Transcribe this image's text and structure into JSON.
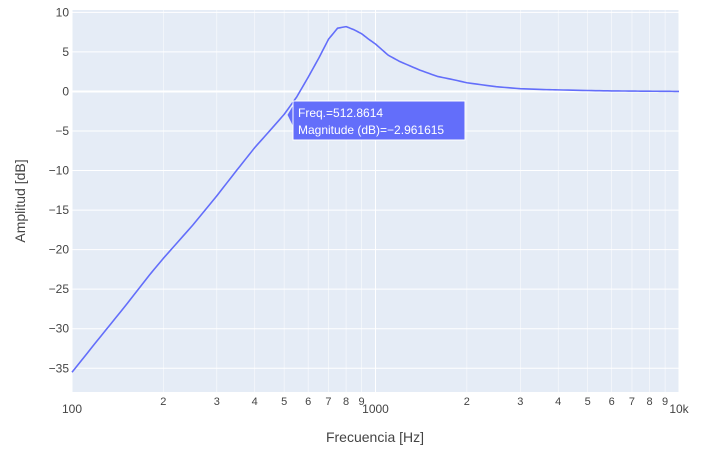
{
  "chart_data": {
    "type": "line",
    "title": "",
    "xlabel": "Frecuencia [Hz]",
    "ylabel": "Amplitud [dB]",
    "x_scale": "log",
    "xlim": [
      100,
      10000
    ],
    "ylim": [
      -38,
      10.3
    ],
    "grid": true,
    "background": "#e5ecf6",
    "x_ticks_major": [
      {
        "value": 100,
        "label": "100"
      },
      {
        "value": 1000,
        "label": "1000"
      },
      {
        "value": 10000,
        "label": "10k"
      }
    ],
    "x_ticks_minor": [
      {
        "value": 200,
        "label": "2"
      },
      {
        "value": 300,
        "label": "3"
      },
      {
        "value": 400,
        "label": "4"
      },
      {
        "value": 500,
        "label": "5"
      },
      {
        "value": 600,
        "label": "6"
      },
      {
        "value": 700,
        "label": "7"
      },
      {
        "value": 800,
        "label": "8"
      },
      {
        "value": 900,
        "label": "9"
      },
      {
        "value": 2000,
        "label": "2"
      },
      {
        "value": 3000,
        "label": "3"
      },
      {
        "value": 4000,
        "label": "4"
      },
      {
        "value": 5000,
        "label": "5"
      },
      {
        "value": 6000,
        "label": "6"
      },
      {
        "value": 7000,
        "label": "7"
      },
      {
        "value": 8000,
        "label": "8"
      },
      {
        "value": 9000,
        "label": "9"
      }
    ],
    "y_ticks": [
      {
        "value": 10,
        "label": "10"
      },
      {
        "value": 5,
        "label": "5"
      },
      {
        "value": 0,
        "label": "0"
      },
      {
        "value": -5,
        "label": "−5"
      },
      {
        "value": -10,
        "label": "−10"
      },
      {
        "value": -15,
        "label": "−15"
      },
      {
        "value": -20,
        "label": "−20"
      },
      {
        "value": -25,
        "label": "−25"
      },
      {
        "value": -30,
        "label": "−30"
      },
      {
        "value": -35,
        "label": "−35"
      }
    ],
    "series": [
      {
        "color": "#636efa",
        "x": [
          100,
          120,
          150,
          180,
          200,
          250,
          300,
          350,
          400,
          450,
          500,
          550,
          600,
          650,
          700,
          750,
          800,
          850,
          900,
          950,
          1000,
          1100,
          1200,
          1400,
          1600,
          1800,
          2000,
          2500,
          3000,
          3500,
          4000,
          5000,
          6000,
          7000,
          8000,
          9000,
          10000
        ],
        "y": [
          -35.5,
          -31.7,
          -27.1,
          -23.2,
          -21.1,
          -16.9,
          -13.2,
          -9.9,
          -7.1,
          -4.9,
          -2.9,
          -0.7,
          1.8,
          4.2,
          6.6,
          8.0,
          8.2,
          7.8,
          7.3,
          6.6,
          6.0,
          4.6,
          3.8,
          2.7,
          1.9,
          1.5,
          1.1,
          0.6,
          0.35,
          0.25,
          0.2,
          0.12,
          0.07,
          0.05,
          0.03,
          0.02,
          0.0
        ]
      }
    ]
  },
  "hover": {
    "freq_label": "Freq.=512.8614",
    "magnitude_label": "Magnitude (dB)=−2.961615",
    "x": 512.8614,
    "y": -2.961615,
    "color": "#636efa"
  }
}
